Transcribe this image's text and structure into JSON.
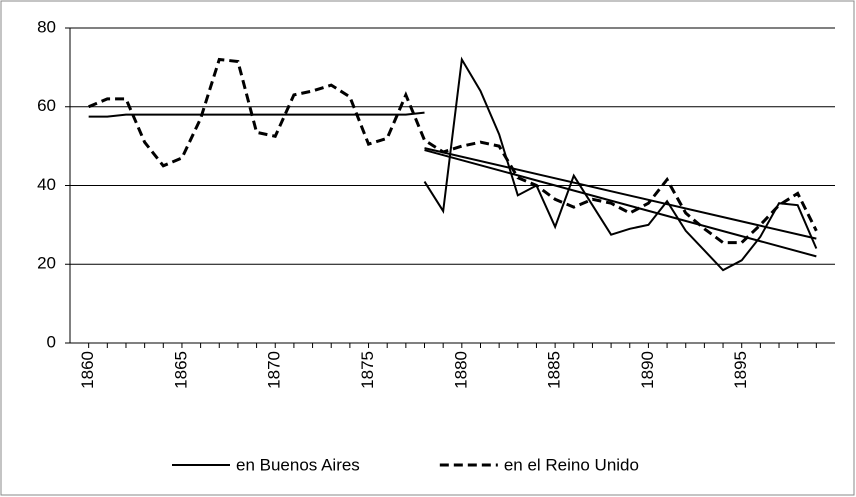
{
  "chart_data": {
    "type": "line",
    "x": [
      1860,
      1861,
      1862,
      1863,
      1864,
      1865,
      1866,
      1867,
      1868,
      1869,
      1870,
      1871,
      1872,
      1873,
      1874,
      1875,
      1876,
      1877,
      1878,
      1879,
      1880,
      1881,
      1882,
      1883,
      1884,
      1885,
      1886,
      1887,
      1888,
      1889,
      1890,
      1891,
      1892,
      1893,
      1894,
      1895,
      1896,
      1897,
      1898,
      1899
    ],
    "xlim": [
      1859,
      1900
    ],
    "xticks": [
      1860,
      1865,
      1870,
      1875,
      1880,
      1885,
      1890,
      1895
    ],
    "ylim": [
      0,
      80
    ],
    "yticks": [
      0,
      20,
      40,
      60,
      80
    ],
    "grid": true,
    "legend": "bottom",
    "series": [
      {
        "name": "en Buenos Aires",
        "color": "#000000",
        "dash": false,
        "values": [
          null,
          null,
          null,
          null,
          null,
          null,
          null,
          null,
          null,
          null,
          null,
          null,
          null,
          null,
          null,
          null,
          null,
          null,
          41,
          33.5,
          72,
          64,
          53,
          37.5,
          40,
          29.5,
          42.5,
          35,
          27.5,
          29,
          30,
          36,
          28.5,
          23.5,
          18.5,
          21,
          27,
          35.5,
          35,
          24
        ]
      },
      {
        "name": "en el Reino Unido",
        "color": "#000000",
        "dash": true,
        "values": [
          60,
          62,
          62,
          51,
          45,
          47,
          57,
          72,
          71.5,
          53.5,
          52.5,
          63,
          64,
          65.5,
          62.5,
          50.5,
          52,
          63,
          51.5,
          48.5,
          50,
          51,
          50,
          42,
          40,
          36.5,
          34.5,
          36.5,
          35.5,
          33,
          35.5,
          41.5,
          33,
          29,
          25.5,
          25.5,
          30,
          35,
          38,
          28.5
        ]
      },
      {
        "color": "#000000",
        "dash": false,
        "x": [
          1860,
          1861,
          1862,
          1877,
          1878
        ],
        "values": [
          57.5,
          57.5,
          58,
          58,
          58.5
        ]
      },
      {
        "color": "#000000",
        "dash": false,
        "x": [
          1878,
          1899
        ],
        "values": [
          49,
          22
        ]
      },
      {
        "color": "#000000",
        "dash": false,
        "x": [
          1878,
          1899
        ],
        "values": [
          49.5,
          26.5
        ]
      }
    ]
  }
}
